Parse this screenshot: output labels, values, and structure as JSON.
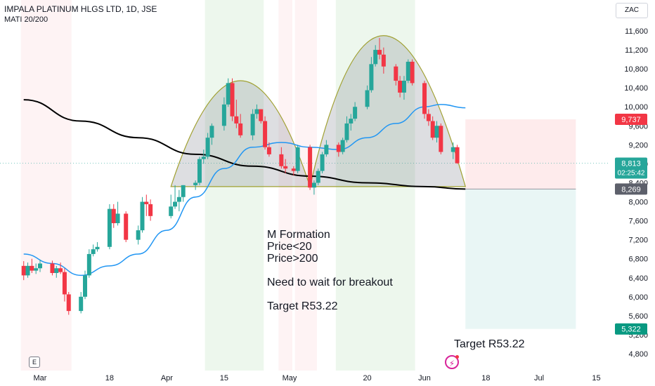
{
  "header": {
    "title": "IMPALA PLATINUM HLGS LTD, 1D, JSE",
    "indicator": "MATI 20/200",
    "currency": "ZAC"
  },
  "annotation": {
    "lines": [
      "M Formation",
      "Price<20",
      "Price>200",
      "",
      "Need to wait for breakout",
      "",
      "Target R53.22"
    ],
    "target_label": "Target R53.22"
  },
  "badges": {
    "earnings": "E",
    "flash_icon": "lightning-icon"
  },
  "colors": {
    "up": "#26a69a",
    "down": "#f23645",
    "ma20": "#2196f3",
    "ma200": "#000000",
    "zone_red": "rgba(242,54,69,0.06)",
    "zone_green": "rgba(76,175,80,0.10)",
    "dome_fill": "rgba(120,123,134,0.25)",
    "dome_stroke": "#a0a030",
    "stop_zone": "rgba(242,54,69,0.10)",
    "target_zone": "rgba(38,166,154,0.10)"
  },
  "chart_data": {
    "type": "candlestick",
    "title": "IMPALA PLATINUM HLGS LTD, 1D, JSE",
    "yaxis": {
      "ticks": [
        4800,
        5200,
        5600,
        6000,
        6400,
        6800,
        7200,
        7600,
        8000,
        8400,
        8800,
        9200,
        9600,
        10000,
        10400,
        10800,
        11200,
        11600
      ],
      "range": [
        4600,
        11900
      ]
    },
    "xaxis": {
      "ticks": [
        {
          "label": "Mar",
          "date": "2024-03-01"
        },
        {
          "label": "18",
          "date": "2024-03-18"
        },
        {
          "label": "Apr",
          "date": "2024-04-01"
        },
        {
          "label": "15",
          "date": "2024-04-15"
        },
        {
          "label": "May",
          "date": "2024-05-01"
        },
        {
          "label": "20",
          "date": "2024-05-20"
        },
        {
          "label": "Jun",
          "date": "2024-06-03"
        },
        {
          "label": "18",
          "date": "2024-06-18"
        },
        {
          "label": "Jul",
          "date": "2024-07-01"
        },
        {
          "label": "15",
          "date": "2024-07-15"
        }
      ],
      "range": [
        "2024-02-26",
        "2024-07-25"
      ]
    },
    "price_labels": {
      "stop": {
        "value": 9737,
        "text": "9,737"
      },
      "last": {
        "value": 8813,
        "text": "8,813",
        "countdown": "02:25:42"
      },
      "ma200": {
        "value": 8269,
        "text": "8,269"
      },
      "target": {
        "value": 5322,
        "text": "5,322"
      }
    },
    "candles": [
      [
        "2024-02-26",
        6650,
        6750,
        6350,
        6450
      ],
      [
        "2024-02-27",
        6450,
        6720,
        6400,
        6650
      ],
      [
        "2024-02-28",
        6650,
        6800,
        6500,
        6550
      ],
      [
        "2024-02-29",
        6550,
        6700,
        6480,
        6600
      ],
      [
        "2024-03-01",
        6600,
        6780,
        6520,
        6700
      ],
      [
        "2024-03-04",
        6700,
        6760,
        6450,
        6500
      ],
      [
        "2024-03-05",
        6500,
        6650,
        6400,
        6600
      ],
      [
        "2024-03-06",
        6600,
        6720,
        6480,
        6520
      ],
      [
        "2024-03-07",
        6520,
        6600,
        5900,
        6050
      ],
      [
        "2024-03-08",
        6050,
        6100,
        5620,
        5700
      ],
      [
        "2024-03-11",
        5700,
        6100,
        5650,
        6000
      ],
      [
        "2024-03-12",
        6000,
        6550,
        5950,
        6450
      ],
      [
        "2024-03-13",
        6450,
        7000,
        6400,
        6900
      ],
      [
        "2024-03-14",
        6900,
        7100,
        6850,
        7000
      ],
      [
        "2024-03-15",
        7000,
        7150,
        6950,
        7050
      ],
      [
        "2024-03-18",
        7050,
        7950,
        7000,
        7850
      ],
      [
        "2024-03-19",
        7850,
        7950,
        7450,
        7550
      ],
      [
        "2024-03-20",
        7550,
        8000,
        7500,
        7750
      ],
      [
        "2024-03-22",
        7750,
        7800,
        7150,
        7200
      ],
      [
        "2024-03-25",
        7200,
        7500,
        7100,
        7400
      ],
      [
        "2024-03-26",
        7400,
        8100,
        7350,
        8000
      ],
      [
        "2024-03-27",
        8000,
        8150,
        7700,
        7950
      ],
      [
        "2024-03-28",
        7950,
        8050,
        7600,
        7700
      ],
      [
        "2024-04-02",
        7700,
        8150,
        7650,
        7900
      ],
      [
        "2024-04-03",
        7900,
        8350,
        7850,
        8000
      ],
      [
        "2024-04-04",
        8000,
        8250,
        7800,
        8100
      ],
      [
        "2024-04-05",
        8100,
        8350,
        8000,
        8350
      ],
      [
        "2024-04-08",
        8350,
        8450,
        8250,
        8400
      ],
      [
        "2024-04-09",
        8400,
        8950,
        8350,
        8900
      ],
      [
        "2024-04-10",
        8900,
        9100,
        8800,
        8950
      ],
      [
        "2024-04-11",
        8950,
        9450,
        8900,
        9350
      ],
      [
        "2024-04-12",
        9350,
        9650,
        9200,
        9600
      ],
      [
        "2024-04-15",
        9600,
        10200,
        9500,
        10050
      ],
      [
        "2024-04-16",
        10050,
        10600,
        10000,
        10500
      ],
      [
        "2024-04-17",
        10500,
        10600,
        9700,
        9800
      ],
      [
        "2024-04-18",
        9800,
        10150,
        9550,
        9650
      ],
      [
        "2024-04-19",
        9650,
        9850,
        9350,
        9400
      ],
      [
        "2024-04-22",
        9400,
        9950,
        9300,
        9850
      ],
      [
        "2024-04-23",
        9850,
        10050,
        9750,
        9950
      ],
      [
        "2024-04-24",
        9950,
        9950,
        9650,
        9700
      ],
      [
        "2024-04-25",
        9700,
        9800,
        9100,
        9150
      ],
      [
        "2024-04-26",
        9150,
        9250,
        8950,
        9000
      ],
      [
        "2024-04-29",
        9000,
        9150,
        8700,
        8750
      ],
      [
        "2024-04-30",
        8750,
        8900,
        8600,
        8700
      ],
      [
        "2024-05-02",
        8700,
        8750,
        8550,
        8650
      ],
      [
        "2024-05-03",
        8650,
        9200,
        8600,
        9150
      ],
      [
        "2024-05-06",
        9150,
        9200,
        8250,
        8300
      ],
      [
        "2024-05-07",
        8300,
        8450,
        8150,
        8400
      ],
      [
        "2024-05-08",
        8400,
        8700,
        8350,
        8650
      ],
      [
        "2024-05-09",
        8650,
        9050,
        8600,
        9000
      ],
      [
        "2024-05-10",
        9000,
        9300,
        8950,
        9200
      ],
      [
        "2024-05-13",
        9200,
        9250,
        8950,
        9050
      ],
      [
        "2024-05-14",
        9050,
        9350,
        9000,
        9300
      ],
      [
        "2024-05-15",
        9300,
        9800,
        9250,
        9650
      ],
      [
        "2024-05-16",
        9650,
        9850,
        9500,
        9750
      ],
      [
        "2024-05-17",
        9750,
        10100,
        9700,
        10000
      ],
      [
        "2024-05-20",
        10000,
        10450,
        9950,
        10350
      ],
      [
        "2024-05-21",
        10350,
        11050,
        10300,
        10900
      ],
      [
        "2024-05-22",
        10900,
        11300,
        10850,
        11200
      ],
      [
        "2024-05-23",
        11200,
        11450,
        11000,
        11100
      ],
      [
        "2024-05-24",
        11100,
        11250,
        10700,
        10850
      ],
      [
        "2024-05-27",
        10850,
        10900,
        10450,
        10550
      ],
      [
        "2024-05-28",
        10550,
        10650,
        10200,
        10300
      ],
      [
        "2024-05-29",
        10300,
        10650,
        10150,
        10550
      ],
      [
        "2024-05-30",
        10550,
        11000,
        10500,
        10950
      ],
      [
        "2024-05-31",
        10950,
        11000,
        10450,
        10500
      ],
      [
        "2024-06-03",
        10500,
        10550,
        9750,
        9850
      ],
      [
        "2024-06-04",
        9850,
        9950,
        9600,
        9700
      ],
      [
        "2024-06-05",
        9700,
        9800,
        9300,
        9350
      ],
      [
        "2024-06-06",
        9350,
        9700,
        9250,
        9600
      ],
      [
        "2024-06-07",
        9600,
        9650,
        9000,
        9050
      ],
      [
        "2024-06-10",
        9050,
        9250,
        8900,
        9150
      ],
      [
        "2024-06-11",
        9150,
        9200,
        8800,
        8813
      ]
    ],
    "ma20": [
      [
        "2024-02-26",
        6900
      ],
      [
        "2024-03-04",
        6700
      ],
      [
        "2024-03-11",
        6450
      ],
      [
        "2024-03-18",
        6650
      ],
      [
        "2024-03-25",
        6900
      ],
      [
        "2024-04-01",
        7400
      ],
      [
        "2024-04-08",
        8100
      ],
      [
        "2024-04-15",
        8700
      ],
      [
        "2024-04-22",
        9150
      ],
      [
        "2024-04-29",
        9250
      ],
      [
        "2024-05-06",
        9150
      ],
      [
        "2024-05-13",
        9100
      ],
      [
        "2024-05-20",
        9350
      ],
      [
        "2024-05-27",
        9650
      ],
      [
        "2024-06-03",
        10000
      ],
      [
        "2024-06-07",
        10050
      ],
      [
        "2024-06-13",
        9980
      ]
    ],
    "ma200": [
      [
        "2024-02-26",
        10150
      ],
      [
        "2024-03-11",
        9700
      ],
      [
        "2024-03-25",
        9350
      ],
      [
        "2024-04-08",
        9000
      ],
      [
        "2024-04-22",
        8750
      ],
      [
        "2024-05-06",
        8540
      ],
      [
        "2024-05-20",
        8400
      ],
      [
        "2024-06-03",
        8320
      ],
      [
        "2024-06-13",
        8269
      ]
    ],
    "zones": [
      {
        "kind": "red",
        "from": "2024-02-26",
        "to": "2024-03-08"
      },
      {
        "kind": "green",
        "from": "2024-04-11",
        "to": "2024-04-24"
      },
      {
        "kind": "red",
        "from": "2024-04-29",
        "to": "2024-05-01"
      },
      {
        "kind": "red",
        "from": "2024-05-03",
        "to": "2024-05-07"
      },
      {
        "kind": "green",
        "from": "2024-05-13",
        "to": "2024-05-31"
      }
    ],
    "domes": [
      {
        "from": "2024-04-02",
        "peak_date": "2024-04-19",
        "to": "2024-05-06",
        "peak": 10550,
        "base": 8320
      },
      {
        "from": "2024-05-06",
        "peak_date": "2024-05-23",
        "to": "2024-06-13",
        "peak": 11500,
        "base": 8320
      }
    ],
    "position": {
      "from": "2024-06-13",
      "to": "2024-07-10",
      "entry": 8269,
      "stop": 9737,
      "target": 5322
    }
  }
}
